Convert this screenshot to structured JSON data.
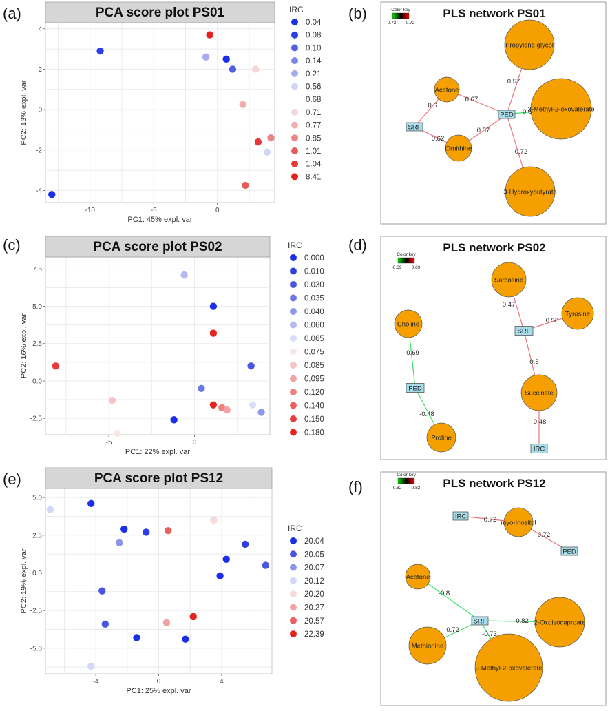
{
  "colors": {
    "node_fill": "#F5A000",
    "node_stroke": "#555555",
    "box_fill": "#A8DCE8",
    "edge_positive": "#E8737A",
    "edge_negative": "#3CE06A",
    "strip": "#D6D6D6",
    "grid": "#EBEBEB"
  },
  "panels": {
    "a": "(a)",
    "b": "(b)",
    "c": "(c)",
    "d": "(d)",
    "e": "(e)",
    "f": "(f)"
  },
  "chart_data": [
    {
      "id": "a",
      "type": "scatter",
      "title": "PCA score plot PS01",
      "xlabel": "PC1: 45% expl. var",
      "ylabel": "PC2: 13% expl. var",
      "xlim": [
        -13.5,
        4.5
      ],
      "ylim": [
        -4.6,
        4.3
      ],
      "xticks": [
        -10,
        -5,
        0
      ],
      "yticks": [
        -4,
        -2,
        0,
        2,
        4
      ],
      "legend_title": "IRC",
      "legend": [
        {
          "label": "0.04",
          "color": "#1A2FE6"
        },
        {
          "label": "0.08",
          "color": "#2E3FE3"
        },
        {
          "label": "0.10",
          "color": "#5260E0"
        },
        {
          "label": "0.14",
          "color": "#7C86E3"
        },
        {
          "label": "0.21",
          "color": "#A7ADEC"
        },
        {
          "label": "0.56",
          "color": "#D2D6F6"
        },
        {
          "label": "0.68",
          "color": null
        },
        {
          "label": "0.71",
          "color": "#F6D6D6"
        },
        {
          "label": "0.77",
          "color": "#F1AEAE"
        },
        {
          "label": "0.85",
          "color": "#EC8585"
        },
        {
          "label": "1.01",
          "color": "#E85B5B"
        },
        {
          "label": "1.04",
          "color": "#E63838"
        },
        {
          "label": "8.41",
          "color": "#E5241F"
        }
      ],
      "points": [
        {
          "x": -13.0,
          "y": -4.2,
          "color": "#1A2FE6"
        },
        {
          "x": -9.2,
          "y": 2.9,
          "color": "#2E3FE3"
        },
        {
          "x": -0.6,
          "y": 3.7,
          "color": "#E5241F"
        },
        {
          "x": -0.9,
          "y": 2.6,
          "color": "#A7ADEC"
        },
        {
          "x": 0.7,
          "y": 2.5,
          "color": "#1A2FE6"
        },
        {
          "x": 1.2,
          "y": 2.0,
          "color": "#5260E0"
        },
        {
          "x": 3.0,
          "y": 2.0,
          "color": "#F6D6D6"
        },
        {
          "x": 2.0,
          "y": 0.25,
          "color": "#F1AEAE"
        },
        {
          "x": 3.2,
          "y": -1.6,
          "color": "#E63838"
        },
        {
          "x": 4.2,
          "y": -1.4,
          "color": "#EC8585"
        },
        {
          "x": 3.9,
          "y": -2.1,
          "color": "#D2D6F6"
        },
        {
          "x": 2.2,
          "y": -3.75,
          "color": "#E85B5B"
        }
      ]
    },
    {
      "id": "c",
      "type": "scatter",
      "title": "PCA score plot PS02",
      "xlabel": "PC1: 22% expl. var",
      "ylabel": "PC2: 16% expl. var",
      "xlim": [
        -8.7,
        4.4
      ],
      "ylim": [
        -3.6,
        8.3
      ],
      "xticks": [
        -5,
        0
      ],
      "yticks": [
        -2.5,
        0.0,
        2.5,
        5.0,
        7.5
      ],
      "legend_title": "IRC",
      "legend": [
        {
          "label": "0.000",
          "color": "#1A2FE6"
        },
        {
          "label": "0.010",
          "color": "#2E3FE3"
        },
        {
          "label": "0.030",
          "color": "#4A55E0"
        },
        {
          "label": "0.035",
          "color": "#6E78E3"
        },
        {
          "label": "0.040",
          "color": "#8F97E8"
        },
        {
          "label": "0.060",
          "color": "#B4BAF0"
        },
        {
          "label": "0.065",
          "color": "#DADDF8"
        },
        {
          "label": "0.075",
          "color": "#FBE6E6"
        },
        {
          "label": "0.085",
          "color": "#F6C4C4"
        },
        {
          "label": "0.095",
          "color": "#F2A3A3"
        },
        {
          "label": "0.120",
          "color": "#EE8282"
        },
        {
          "label": "0.140",
          "color": "#EB5F5F"
        },
        {
          "label": "0.150",
          "color": "#E83C3C"
        },
        {
          "label": "0.180",
          "color": "#E5241F"
        }
      ],
      "points": [
        {
          "x": -0.6,
          "y": 7.1,
          "color": "#B4BAF0"
        },
        {
          "x": 1.1,
          "y": 5.0,
          "color": "#1A2FE6"
        },
        {
          "x": 1.1,
          "y": 3.2,
          "color": "#E5241F"
        },
        {
          "x": -8.1,
          "y": 1.0,
          "color": "#E83C3C"
        },
        {
          "x": 3.3,
          "y": 1.0,
          "color": "#4A55E0"
        },
        {
          "x": 0.4,
          "y": -0.5,
          "color": "#6E78E3"
        },
        {
          "x": -4.8,
          "y": -1.3,
          "color": "#F6C4C4"
        },
        {
          "x": 1.1,
          "y": -1.6,
          "color": "#E5241F"
        },
        {
          "x": 1.6,
          "y": -1.8,
          "color": "#EE8282"
        },
        {
          "x": 1.9,
          "y": -1.95,
          "color": "#F2A3A3"
        },
        {
          "x": 3.4,
          "y": -1.6,
          "color": "#DADDF8"
        },
        {
          "x": 3.9,
          "y": -2.1,
          "color": "#8F97E8"
        },
        {
          "x": -1.2,
          "y": -2.6,
          "color": "#1A2FE6"
        },
        {
          "x": -4.5,
          "y": -3.5,
          "color": "#FBE6E6"
        }
      ]
    },
    {
      "id": "e",
      "type": "scatter",
      "title": "PCA score plot PS12",
      "xlabel": "PC1: 25% expl. var",
      "ylabel": "PC2: 19% expl. var",
      "xlim": [
        -7.2,
        7.2
      ],
      "ylim": [
        -6.7,
        5.6
      ],
      "xticks": [
        -4,
        0,
        4
      ],
      "yticks": [
        -5.0,
        -2.5,
        0.0,
        2.5,
        5.0
      ],
      "legend_title": "IRC",
      "legend": [
        {
          "label": "20.04",
          "color": "#1A2FE6"
        },
        {
          "label": "20.05",
          "color": "#4A55E0"
        },
        {
          "label": "20.07",
          "color": "#8C94E8"
        },
        {
          "label": "20.12",
          "color": "#D4D8F6"
        },
        {
          "label": "20.20",
          "color": "#F8DADA"
        },
        {
          "label": "20.27",
          "color": "#F1A3A3"
        },
        {
          "label": "20.57",
          "color": "#EB5F5F"
        },
        {
          "label": "22.39",
          "color": "#E5241F"
        }
      ],
      "points": [
        {
          "x": -6.9,
          "y": 4.2,
          "color": "#D4D8F6"
        },
        {
          "x": -4.3,
          "y": 4.6,
          "color": "#1A2FE6"
        },
        {
          "x": -2.2,
          "y": 2.9,
          "color": "#1A2FE6"
        },
        {
          "x": -0.8,
          "y": 2.7,
          "color": "#2E3FE3"
        },
        {
          "x": 0.6,
          "y": 2.8,
          "color": "#EB5F5F"
        },
        {
          "x": 3.5,
          "y": 3.5,
          "color": "#F8DADA"
        },
        {
          "x": -2.5,
          "y": 2.0,
          "color": "#8C94E8"
        },
        {
          "x": 5.5,
          "y": 1.9,
          "color": "#2E3FE3"
        },
        {
          "x": 4.3,
          "y": 0.9,
          "color": "#1A2FE6"
        },
        {
          "x": 6.8,
          "y": 0.5,
          "color": "#4A55E0"
        },
        {
          "x": 3.9,
          "y": -0.2,
          "color": "#1A2FE6"
        },
        {
          "x": -3.6,
          "y": -1.2,
          "color": "#4A55E0"
        },
        {
          "x": 2.2,
          "y": -2.9,
          "color": "#E5241F"
        },
        {
          "x": 0.5,
          "y": -3.3,
          "color": "#F1A3A3"
        },
        {
          "x": -3.4,
          "y": -3.4,
          "color": "#4A55E0"
        },
        {
          "x": -1.4,
          "y": -4.3,
          "color": "#1A2FE6"
        },
        {
          "x": 1.7,
          "y": -4.4,
          "color": "#1A2FE6"
        },
        {
          "x": -4.3,
          "y": -6.2,
          "color": "#D4D8F6"
        }
      ]
    }
  ],
  "networks": [
    {
      "id": "b",
      "title": "PLS network PS01",
      "color_key": {
        "label": "Color key",
        "min": "-0.72",
        "max": "0.72"
      },
      "nodes": [
        {
          "name": "Propylene glycol",
          "type": "circle",
          "size": 3
        },
        {
          "name": "Acetone",
          "type": "circle",
          "size": 1
        },
        {
          "name": "3-Methyl-2-oxovalerate",
          "type": "circle",
          "size": 5
        },
        {
          "name": "PED",
          "type": "box"
        },
        {
          "name": "SRF",
          "type": "box"
        },
        {
          "name": "Ornithine",
          "type": "circle",
          "size": 1
        },
        {
          "name": "3-Hydroxybutyrate",
          "type": "circle",
          "size": 4
        }
      ],
      "edges": [
        {
          "from": "Propylene glycol",
          "to": "PED",
          "weight": "0.57",
          "sign": "+"
        },
        {
          "from": "Acetone",
          "to": "PED",
          "weight": "0.67",
          "sign": "+"
        },
        {
          "from": "3-Methyl-2-oxovalerate",
          "to": "PED",
          "weight": "-0.6",
          "sign": "-"
        },
        {
          "from": "SRF",
          "to": "Acetone",
          "weight": "0.6",
          "sign": "+"
        },
        {
          "from": "SRF",
          "to": "Ornithine",
          "weight": "0.62",
          "sign": "+"
        },
        {
          "from": "Ornithine",
          "to": "PED",
          "weight": "0.57",
          "sign": "+"
        },
        {
          "from": "PED",
          "to": "3-Hydroxybutyrate",
          "weight": "0.72",
          "sign": "+"
        }
      ]
    },
    {
      "id": "d",
      "title": "PLS network PS02",
      "color_key": {
        "label": "Color key",
        "min": "-0.69",
        "max": "0.69"
      },
      "nodes": [
        {
          "name": "Sarcosine",
          "type": "circle",
          "size": 2
        },
        {
          "name": "Tyrosine",
          "type": "circle",
          "size": 2
        },
        {
          "name": "SRF",
          "type": "box"
        },
        {
          "name": "Choline",
          "type": "circle",
          "size": 1
        },
        {
          "name": "PED",
          "type": "box"
        },
        {
          "name": "Succinate",
          "type": "circle",
          "size": 2
        },
        {
          "name": "Proline",
          "type": "circle",
          "size": 1
        },
        {
          "name": "IRC",
          "type": "box"
        }
      ],
      "edges": [
        {
          "from": "Sarcosine",
          "to": "SRF",
          "weight": "0.47",
          "sign": "+"
        },
        {
          "from": "Tyrosine",
          "to": "SRF",
          "weight": "0.58",
          "sign": "+"
        },
        {
          "from": "SRF",
          "to": "Succinate",
          "weight": "0.5",
          "sign": "+"
        },
        {
          "from": "Succinate",
          "to": "IRC",
          "weight": "0.48",
          "sign": "+"
        },
        {
          "from": "Choline",
          "to": "PED",
          "weight": "-0.69",
          "sign": "-"
        },
        {
          "from": "PED",
          "to": "Proline",
          "weight": "-0.48",
          "sign": "-"
        }
      ]
    },
    {
      "id": "f",
      "title": "PLS network PS12",
      "color_key": {
        "label": "Color key",
        "min": "-0.82",
        "max": "0.82"
      },
      "nodes": [
        {
          "name": "IRC",
          "type": "box"
        },
        {
          "name": "myo-Inositol",
          "type": "circle",
          "size": 1
        },
        {
          "name": "PED",
          "type": "box"
        },
        {
          "name": "Acetone",
          "type": "circle",
          "size": 1
        },
        {
          "name": "SRF",
          "type": "box"
        },
        {
          "name": "2-Oxoisocaproate",
          "type": "circle",
          "size": 3
        },
        {
          "name": "Methionine",
          "type": "circle",
          "size": 1
        },
        {
          "name": "3-Methyl-2-oxovalerate",
          "type": "circle",
          "size": 4
        }
      ],
      "edges": [
        {
          "from": "IRC",
          "to": "myo-Inositol",
          "weight": "0.72",
          "sign": "+"
        },
        {
          "from": "myo-Inositol",
          "to": "PED",
          "weight": "0.72",
          "sign": "+"
        },
        {
          "from": "Acetone",
          "to": "SRF",
          "weight": "-0.8",
          "sign": "-"
        },
        {
          "from": "SRF",
          "to": "2-Oxoisocaproate",
          "weight": "-0.82",
          "sign": "-"
        },
        {
          "from": "Methionine",
          "to": "SRF",
          "weight": "-0.72",
          "sign": "-"
        },
        {
          "from": "SRF",
          "to": "3-Methyl-2-oxovalerate",
          "weight": "-0.73",
          "sign": "-"
        }
      ]
    }
  ]
}
